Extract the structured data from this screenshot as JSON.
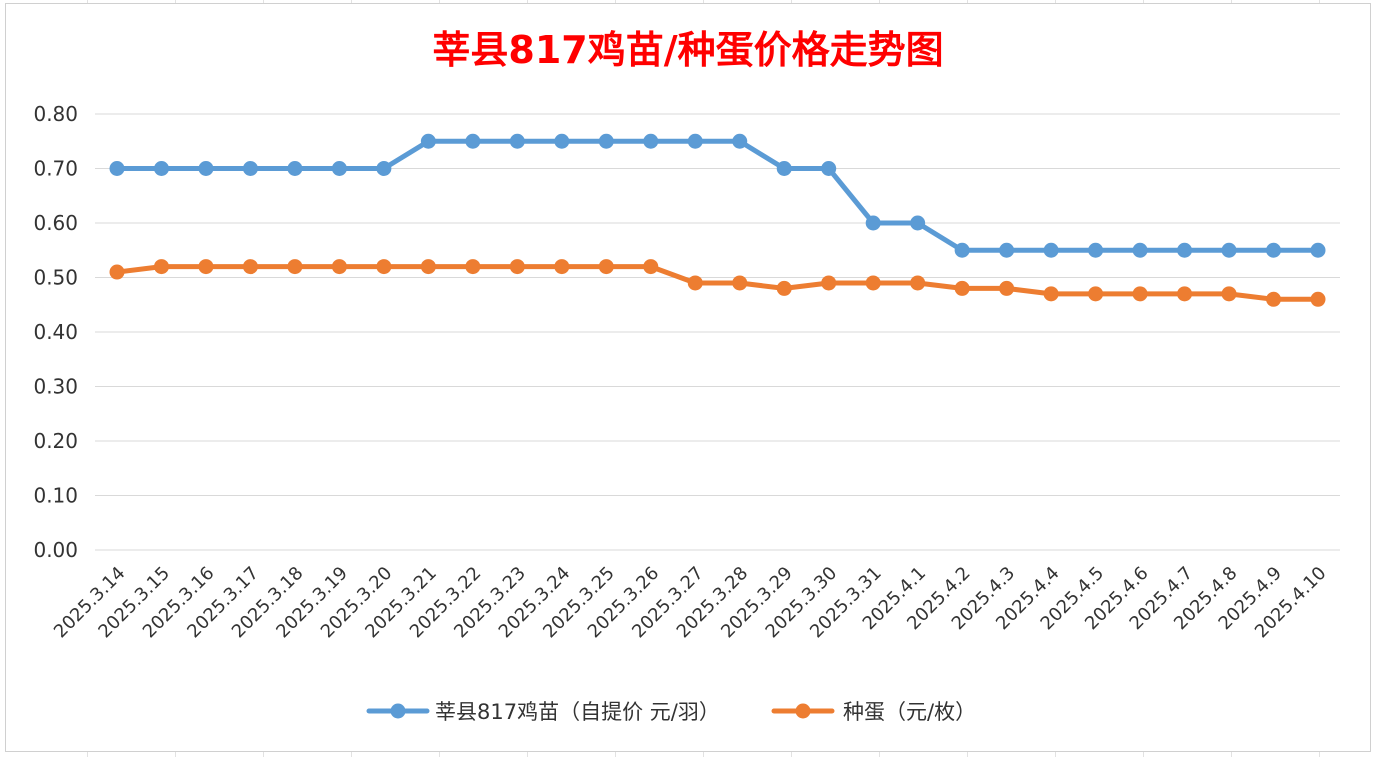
{
  "chart_data": {
    "type": "line",
    "title": "莘县817鸡苗/种蛋价格走势图",
    "xlabel": "",
    "ylabel": "",
    "ylim": [
      0,
      0.8
    ],
    "yticks": [
      "0.00",
      "0.10",
      "0.20",
      "0.30",
      "0.40",
      "0.50",
      "0.60",
      "0.70",
      "0.80"
    ],
    "grid": true,
    "legend_position": "bottom",
    "categories": [
      "2025.3.14",
      "2025.3.15",
      "2025.3.16",
      "2025.3.17",
      "2025.3.18",
      "2025.3.19",
      "2025.3.20",
      "2025.3.21",
      "2025.3.22",
      "2025.3.23",
      "2025.3.24",
      "2025.3.25",
      "2025.3.26",
      "2025.3.27",
      "2025.3.28",
      "2025.3.29",
      "2025.3.30",
      "2025.3.31",
      "2025.4.1",
      "2025.4.2",
      "2025.4.3",
      "2025.4.4",
      "2025.4.5",
      "2025.4.6",
      "2025.4.7",
      "2025.4.8",
      "2025.4.9",
      "2025.4.10"
    ],
    "series": [
      {
        "name": "莘县817鸡苗（自提价 元/羽）",
        "color": "#5b9bd5",
        "values": [
          0.7,
          0.7,
          0.7,
          0.7,
          0.7,
          0.7,
          0.7,
          0.75,
          0.75,
          0.75,
          0.75,
          0.75,
          0.75,
          0.75,
          0.75,
          0.7,
          0.7,
          0.6,
          0.6,
          0.55,
          0.55,
          0.55,
          0.55,
          0.55,
          0.55,
          0.55,
          0.55,
          0.55
        ]
      },
      {
        "name": "种蛋（元/枚）",
        "color": "#ed7d31",
        "values": [
          0.51,
          0.52,
          0.52,
          0.52,
          0.52,
          0.52,
          0.52,
          0.52,
          0.52,
          0.52,
          0.52,
          0.52,
          0.52,
          0.49,
          0.49,
          0.48,
          0.49,
          0.49,
          0.49,
          0.48,
          0.48,
          0.47,
          0.47,
          0.47,
          0.47,
          0.47,
          0.46,
          0.46
        ]
      }
    ]
  }
}
